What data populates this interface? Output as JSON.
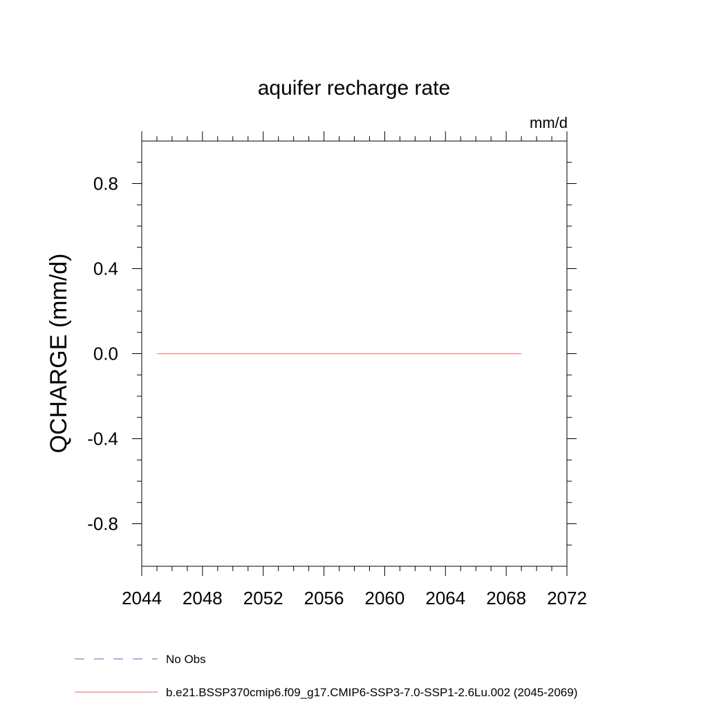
{
  "chart_data": {
    "type": "line",
    "title": "aquifer recharge rate",
    "units": "mm/d",
    "ylabel": "QCHARGE  (mm/d)",
    "xlabel": "",
    "xlim": [
      2044,
      2072
    ],
    "ylim": [
      -1.0,
      1.0
    ],
    "x_ticks": [
      2044,
      2048,
      2052,
      2056,
      2060,
      2064,
      2068,
      2072
    ],
    "x_tick_labels": [
      "2044",
      "2048",
      "2052",
      "2056",
      "2060",
      "2064",
      "2068",
      "2072"
    ],
    "y_ticks": [
      -0.8,
      -0.4,
      0.0,
      0.4,
      0.8
    ],
    "y_tick_labels": [
      "-0.8",
      "-0.4",
      "0.0",
      "0.4",
      "0.8"
    ],
    "grid": false,
    "legend_position": "bottom",
    "series": [
      {
        "name": "No Obs",
        "color": "#7f7fbf",
        "dash": "dashed",
        "x": [],
        "y": []
      },
      {
        "name": "b.e21.BSSP370cmip6.f09_g17.CMIP6-SSP3-7.0-SSP1-2.6Lu.002 (2045-2069)",
        "color": "#f08080",
        "dash": "solid",
        "x": [
          2045,
          2069
        ],
        "y": [
          0.0,
          0.0
        ]
      }
    ]
  }
}
